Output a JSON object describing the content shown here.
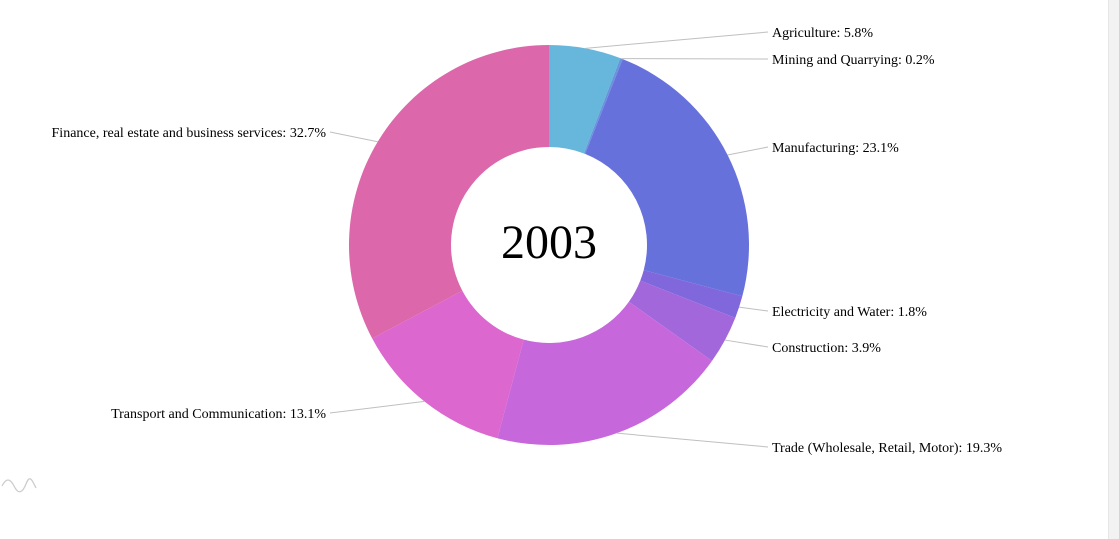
{
  "chart_data": {
    "type": "pie",
    "variant": "donut",
    "center_label": "2003",
    "slices": [
      {
        "name": "Agriculture",
        "value": 5.8,
        "label": "Agriculture: 5.8%",
        "color": "#67b7dc"
      },
      {
        "name": "Mining and Quarrying",
        "value": 0.2,
        "label": "Mining and Quarrying: 0.2%",
        "color": "#6794dc"
      },
      {
        "name": "Manufacturing",
        "value": 23.1,
        "label": "Manufacturing: 23.1%",
        "color": "#6771dc"
      },
      {
        "name": "Electricity and Water",
        "value": 1.8,
        "label": "Electricity and Water: 1.8%",
        "color": "#8067dc"
      },
      {
        "name": "Construction",
        "value": 3.9,
        "label": "Construction: 3.9%",
        "color": "#a367dc"
      },
      {
        "name": "Trade (Wholesale, Retail, Motor)",
        "value": 19.3,
        "label": "Trade (Wholesale, Retail, Motor): 19.3%",
        "color": "#c767dc"
      },
      {
        "name": "Transport and Communication",
        "value": 13.1,
        "label": "Transport and Communication: 13.1%",
        "color": "#dc67ce"
      },
      {
        "name": "Finance, real estate and business services",
        "value": 32.7,
        "label": "Finance, real estate and business services: 32.7%",
        "color": "#dc67ab"
      }
    ]
  }
}
